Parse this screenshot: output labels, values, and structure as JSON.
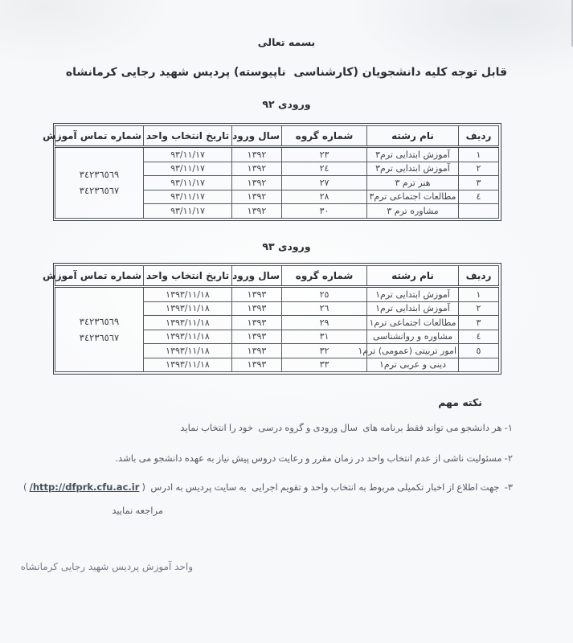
{
  "doc": {
    "bismillah": "بسمه تعالی",
    "title": "قابل توجه کلیه دانشجویان (کارشناسی  ناپیوسته) پردیس شهید رجایی کرمانشاه",
    "footer": "واحد آموزش پردیس شهید رجایی کرمانشاه"
  },
  "tables": [
    {
      "heading": "ورودی ٩٢",
      "headers": [
        "ردیف",
        "نام رشته",
        "شماره گروه",
        "سال ورود",
        "تاریخ انتخاب واحد",
        "شماره تماس آموزش"
      ],
      "phones": [
        "٣٤٢٣٦٥٦٩",
        "٣٤٢٣٦٥٦٧"
      ],
      "rows": [
        {
          "radif": "١",
          "name": "آموزش ابتدایی ترم٣",
          "group": "٢٣",
          "year": "١٣٩٢",
          "date": "٩٣/١١/١٧"
        },
        {
          "radif": "٢",
          "name": "آموزش ابتدایی ترم٣",
          "group": "٢٤",
          "year": "١٣٩٢",
          "date": "٩٣/١١/١٧"
        },
        {
          "radif": "٣",
          "name": "هنر ترم ٣",
          "group": "٢٧",
          "year": "١٣٩٢",
          "date": "٩٣/١١/١٧"
        },
        {
          "radif": "٤",
          "name": "مطالعات اجتماعی ترم٣",
          "group": "٢٨",
          "year": "١٣٩٢",
          "date": "٩٣/١١/١٧"
        },
        {
          "radif": "",
          "name": "مشاوره ترم ٣",
          "group": "٣٠",
          "year": "١٣٩٢",
          "date": "٩٣/١١/١٧"
        }
      ]
    },
    {
      "heading": "ورودی ٩٣",
      "headers": [
        "ردیف",
        "نام رشته",
        "شماره گروه",
        "سال ورود",
        "تاریخ انتخاب واحد",
        "شماره تماس آموزش"
      ],
      "phones": [
        "٣٤٢٣٦٥٦٩",
        "٣٤٢٣٦٥٦٧"
      ],
      "rows": [
        {
          "radif": "١",
          "name": "آموزش ابتدایی ترم١",
          "group": "٢٥",
          "year": "١٣٩٣",
          "date": "١٣٩٣/١١/١٨"
        },
        {
          "radif": "٢",
          "name": "آموزش ابتدایی ترم١",
          "group": "٢٦",
          "year": "١٣٩٣",
          "date": "١٣٩٣/١١/١٨"
        },
        {
          "radif": "٣",
          "name": "مطالعات اجتماعی ترم١",
          "group": "٢٩",
          "year": "١٣٩٣",
          "date": "١٣٩٣/١١/١٨"
        },
        {
          "radif": "٤",
          "name": "مشاوره و روانشناسی",
          "group": "٣١",
          "year": "١٣٩٣",
          "date": "١٣٩٣/١١/١٨"
        },
        {
          "radif": "٥",
          "name": "امور تربیتی (عمومی) ترم١",
          "group": "٣٢",
          "year": "١٣٩٣",
          "date": "١٣٩٣/١١/١٨"
        },
        {
          "radif": "",
          "name": "دینی و عربی ترم١",
          "group": "٣٣",
          "year": "١٣٩٣",
          "date": "١٣٩٣/١١/١٨"
        }
      ]
    }
  ],
  "notes": {
    "heading": "نکته مهم",
    "note1": "١- هر دانشجو می تواند فقط برنامه های  سال ورودی و گروه درسی  خود را انتخاب نماید",
    "note2": "٢- مسئولیت ناشی از عدم انتخاب واحد در زمان مقرر و رعایت دروس پیش نیاز به عهده دانشجو می باشد.",
    "note3_prefix": "٣-  جهت اطلاع از اخبار تکمیلی مربوط به انتخاب واحد و تقویم اجرایی  به سایت پردیس به ادرس  ( ",
    "note3_url": "http://dfprk.cfu.ac.ir/",
    "note3_suffix": " )",
    "note3_line2": "مراجعه نمایید"
  }
}
